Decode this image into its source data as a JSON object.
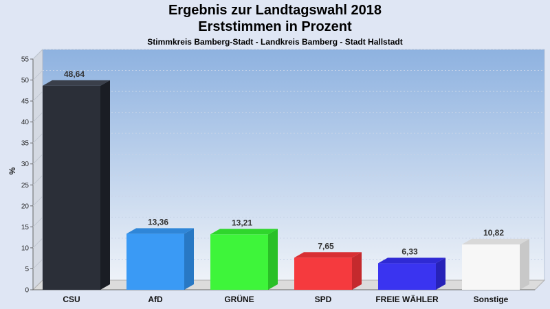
{
  "chart_data": {
    "type": "bar",
    "title": "Ergebnis zur Landtagswahl 2018",
    "subtitle": "Erststimmen in Prozent",
    "caption": "Stimmkreis Bamberg-Stadt - Landkreis Bamberg - Stadt Hallstadt",
    "ylabel": "%",
    "ylim": [
      0,
      55
    ],
    "yticks": [
      "0",
      "5",
      "10",
      "15",
      "20",
      "25",
      "30",
      "35",
      "40",
      "45",
      "50",
      "55"
    ],
    "categories": [
      "CSU",
      "AfD",
      "GRÜNE",
      "SPD",
      "FREIE WÄHLER",
      "Sonstige"
    ],
    "values": [
      48.64,
      13.36,
      13.21,
      7.65,
      6.33,
      10.82
    ],
    "value_labels": [
      "48,64",
      "13,36",
      "13,21",
      "7,65",
      "6,33",
      "10,82"
    ],
    "colors": [
      "#2b2f38",
      "#3a9af5",
      "#3ef53a",
      "#f53a3e",
      "#3a34f0",
      "#f7f7f7"
    ],
    "side_colors": [
      "#1a1d24",
      "#2878c4",
      "#2ac027",
      "#c42a2d",
      "#2722b8",
      "#c8c8c8"
    ],
    "top_colors": [
      "#3a3f4a",
      "#2f86d8",
      "#2fd62c",
      "#d82f33",
      "#2f2ad4",
      "#d8d8d8"
    ],
    "grid": true,
    "legend": "none"
  }
}
